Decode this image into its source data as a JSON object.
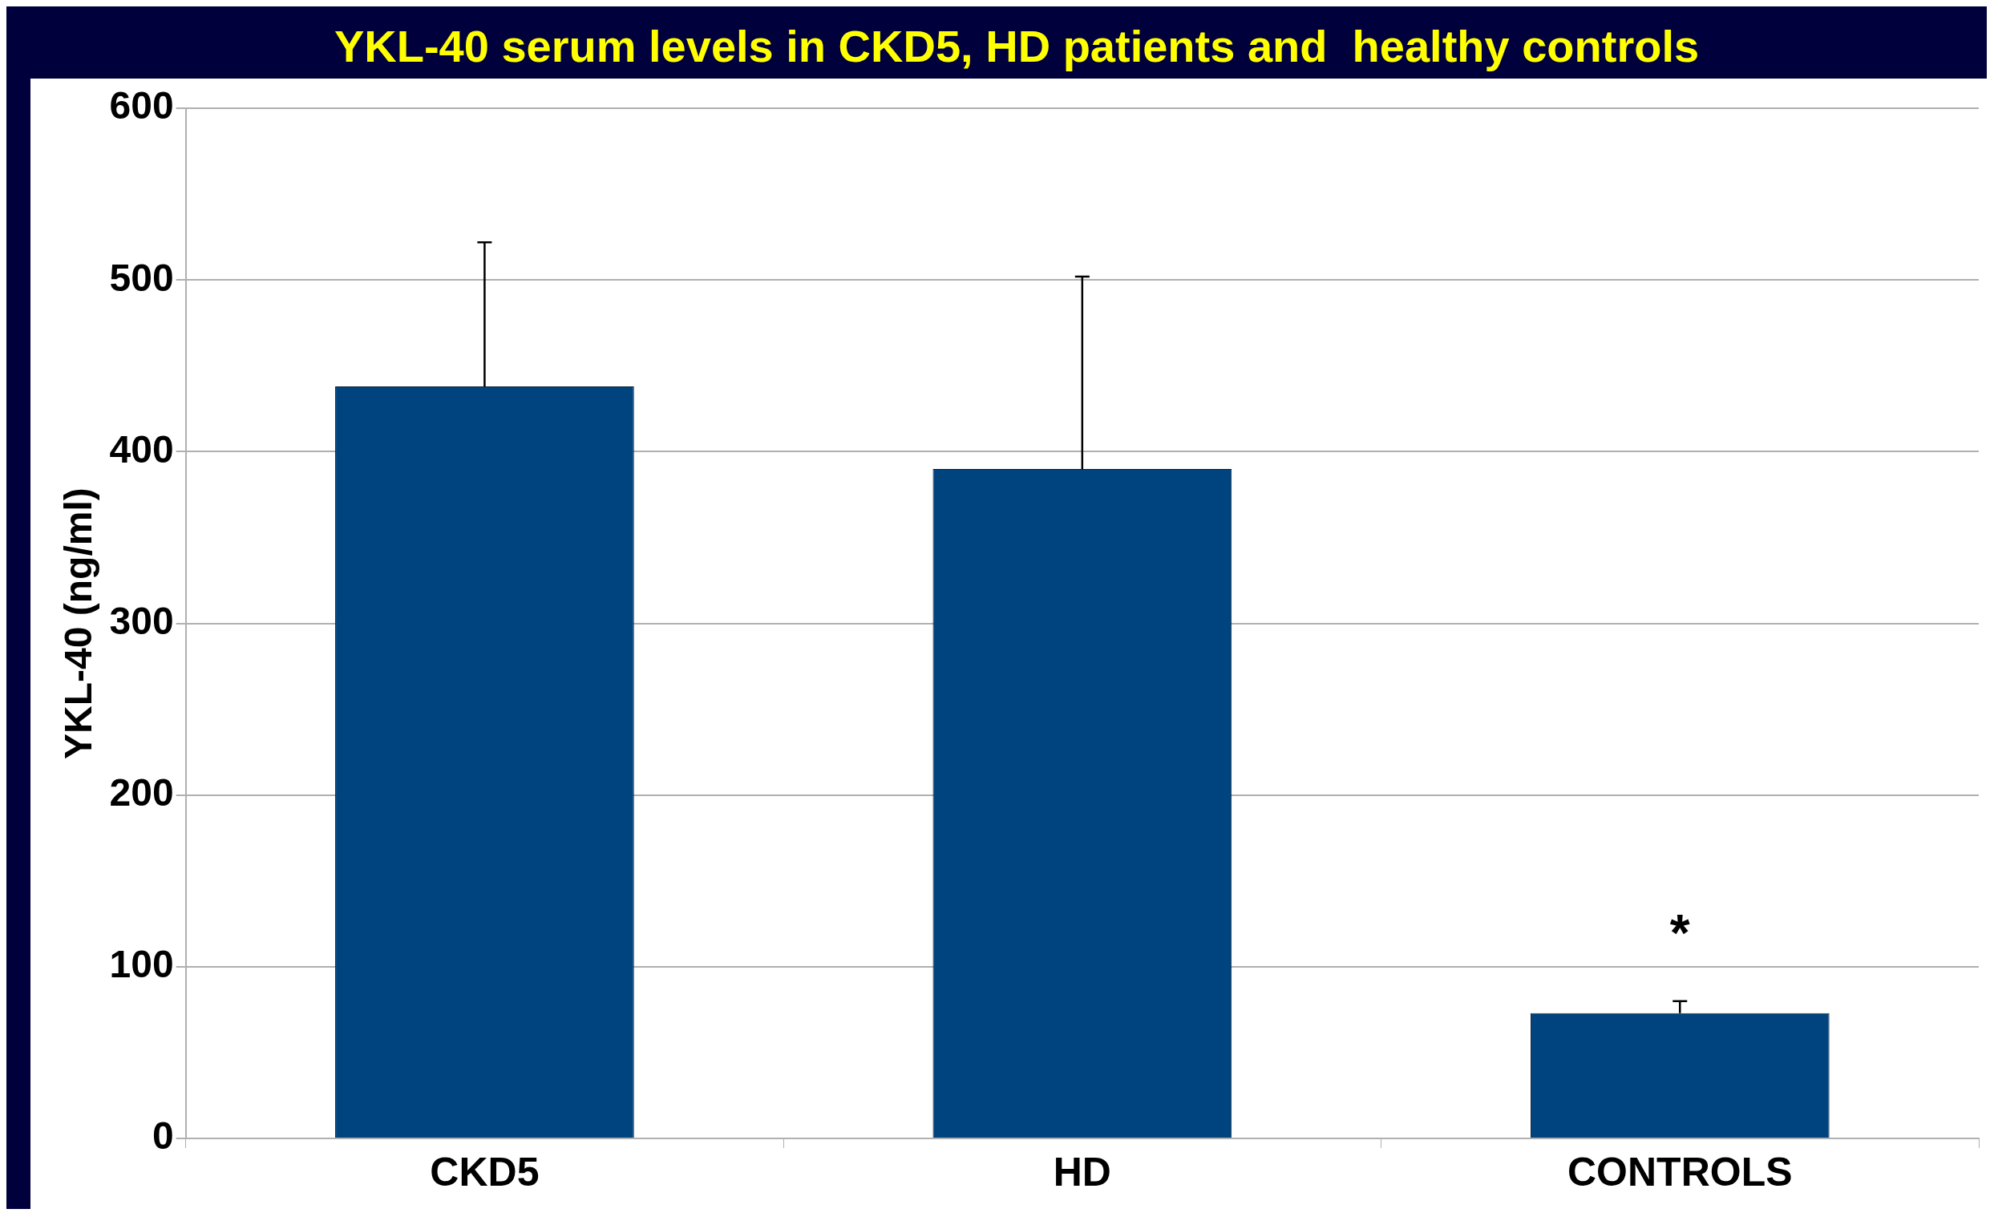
{
  "chart_data": {
    "type": "bar",
    "title": "YKL-40 serum levels in CKD5, HD patients and  healthy controls",
    "ylabel": "YKL-40 (ng/ml)",
    "categories": [
      "CKD5",
      "HD",
      "CONTROLS"
    ],
    "values": [
      438,
      390,
      73
    ],
    "color": "#00447f",
    "errors": [
      [
        438,
        522
      ],
      [
        390,
        502
      ],
      [
        73,
        80
      ]
    ],
    "ylim": [
      0,
      600
    ],
    "yticks": [
      0,
      100,
      200,
      300,
      400,
      500,
      600
    ],
    "grid": "y",
    "annotations": [
      "*"
    ]
  }
}
